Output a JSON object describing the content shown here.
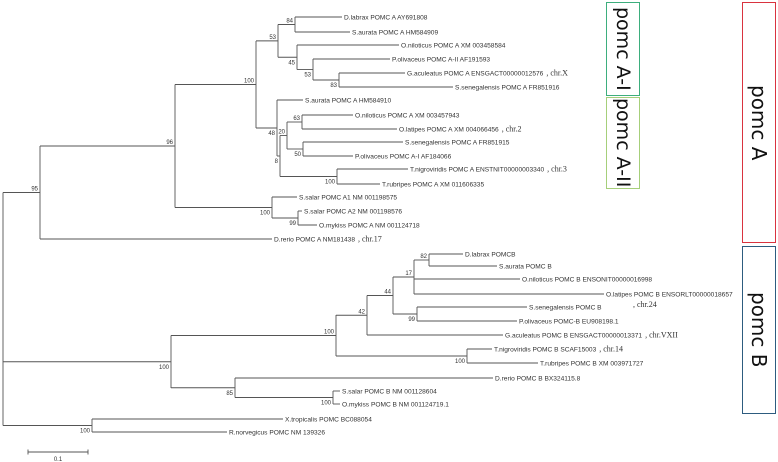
{
  "leaves": [
    {
      "text": "D.labrax POMC A AY691808"
    },
    {
      "text": "S.aurata POMC A HM584909"
    },
    {
      "text": "O.niloticus POMC A XM 003458584"
    },
    {
      "text": "P.olivaceus POMC A-II AF191593"
    },
    {
      "text": "G.aculeatus POMC A ENSGACT00000012576",
      "chr": ", chr.X"
    },
    {
      "text": "S.senegalensis POMC A FR851916"
    },
    {
      "text": "S.aurata POMC A HM584910"
    },
    {
      "text": "O.niloticus POMC A XM 003457943"
    },
    {
      "text": "O.latipes POMC A XM 004066456",
      "chr": ", chr.2"
    },
    {
      "text": "S.senegalensis POMC A FR851915"
    },
    {
      "text": "P.olivaceus POMC A-I AF184066"
    },
    {
      "text": "T.nigroviridis POMC A ENSTNIT00000003340",
      "chr": ", chr.3"
    },
    {
      "text": "T.rubripes POMC A XM 011606335"
    },
    {
      "text": "S.salar POMC A1 NM 001198575"
    },
    {
      "text": "S.salar POMC A2 NM 001198576"
    },
    {
      "text": "O.mykiss POMC A NM 001124718"
    },
    {
      "text": "D.rerio POMC A NM181438",
      "chr": ", chr.17"
    },
    {
      "text": "D.labrax POMCB"
    },
    {
      "text": "S.aurata POMC B"
    },
    {
      "text": "O.niloticus POMC B ENSONIT00000016998"
    },
    {
      "text": "O.latipes POMC B ENSORLT00000018657",
      "chr": ", chr.24"
    },
    {
      "text": "S.senegalensis POMC B"
    },
    {
      "text": "P.olivaceus POMC-B EU908198.1"
    },
    {
      "text": "G.aculeatus POMC B ENSGACT00000013371",
      "chr": ", chr.VXII"
    },
    {
      "text": "T.nigroviridis POMC B SCAF15003",
      "chr": ", chr.14"
    },
    {
      "text": "T.rubripes POMC B XM 003971727"
    },
    {
      "text": "D.rerio POMC B BX324115.8"
    },
    {
      "text": "S.salar POMC B NM 001128604"
    },
    {
      "text": "O.mykiss POMC B NM 001124719.1"
    },
    {
      "text": "X.tropicalis POMC BC088054"
    },
    {
      "text": "R.norvegicus POMC NM 139326"
    }
  ],
  "bootstrap": [
    "84",
    "45",
    "53",
    "83",
    "53",
    "63",
    "50",
    "20",
    "100",
    "8",
    "48",
    "100",
    "99",
    "100",
    "96",
    "95",
    "82",
    "17",
    "99",
    "44",
    "42",
    "100",
    "100",
    "100",
    "85",
    "100",
    "100",
    ""
  ],
  "scale_bar": {
    "label": "0.1",
    "value": 0.1
  },
  "clades": {
    "pomc_a1": {
      "label": "pomc A-I",
      "color": "#3dae7d"
    },
    "pomc_a2": {
      "label": "pomc A-II",
      "color": "#a6cf7a"
    },
    "pomc_a": {
      "label": "pomc A",
      "color": "#d9333f"
    },
    "pomc_b": {
      "label": "pomc B",
      "color": "#2d5c7f"
    }
  }
}
